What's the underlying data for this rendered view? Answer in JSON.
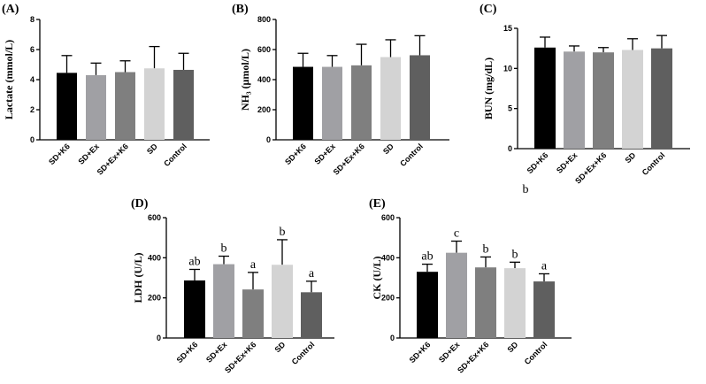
{
  "chart_data": [
    {
      "type": "bar",
      "panel": "(A)",
      "ylabel": "Lactate (mmol/L)",
      "categories": [
        "SD+K6",
        "SD+Ex",
        "SD+Ex+K6",
        "SD",
        "Control"
      ],
      "values": [
        4.45,
        4.3,
        4.5,
        4.75,
        4.65
      ],
      "errors": [
        1.15,
        0.8,
        0.75,
        1.45,
        1.1
      ],
      "letters": [],
      "ylim": [
        0,
        8
      ],
      "yticks": [
        "0",
        "2",
        "4",
        "6",
        "8"
      ],
      "colors": [
        "#000000",
        "#a0a0a4",
        "#7f7f7f",
        "#d3d3d3",
        "#5f5f5f"
      ]
    },
    {
      "type": "bar",
      "panel": "(B)",
      "ylabel": "NH₃ (μmol/L)",
      "categories": [
        "SD+K6",
        "SD+Ex",
        "SD+Ex+K6",
        "SD",
        "Control"
      ],
      "values": [
        485,
        485,
        495,
        550,
        562
      ],
      "errors": [
        90,
        75,
        140,
        115,
        130
      ],
      "letters": [],
      "ylim": [
        0,
        800
      ],
      "yticks": [
        "0",
        "200",
        "400",
        "600",
        "800"
      ],
      "colors": [
        "#000000",
        "#a0a0a4",
        "#7f7f7f",
        "#d3d3d3",
        "#5f5f5f"
      ]
    },
    {
      "type": "bar",
      "panel": "(C)",
      "ylabel": "BUN (mg/dL)",
      "categories": [
        "SD+K6",
        "SD+Ex",
        "SD+Ex+K6",
        "SD",
        "Control"
      ],
      "values": [
        12.6,
        12.1,
        12.0,
        12.3,
        12.5
      ],
      "errors": [
        1.3,
        0.7,
        0.6,
        1.4,
        1.6
      ],
      "letters": [],
      "ylim": [
        0,
        15
      ],
      "yticks": [
        "0",
        "5",
        "10",
        "15"
      ],
      "colors": [
        "#000000",
        "#a0a0a4",
        "#7f7f7f",
        "#d3d3d3",
        "#5f5f5f"
      ],
      "annotation": "b"
    },
    {
      "type": "bar",
      "panel": "(D)",
      "ylabel": "LDH (U/L)",
      "categories": [
        "SD+K6",
        "SD+Ex",
        "SD+Ex+K6",
        "SD",
        "Control"
      ],
      "values": [
        287,
        368,
        242,
        365,
        228
      ],
      "errors": [
        55,
        40,
        85,
        125,
        55
      ],
      "letters": [
        "ab",
        "b",
        "a",
        "b",
        "a"
      ],
      "ylim": [
        0,
        600
      ],
      "yticks": [
        "0",
        "200",
        "400",
        "600"
      ],
      "colors": [
        "#000000",
        "#a0a0a4",
        "#7f7f7f",
        "#d3d3d3",
        "#5f5f5f"
      ]
    },
    {
      "type": "bar",
      "panel": "(E)",
      "ylabel": "CK (U/L)",
      "categories": [
        "SD+K6",
        "SD+Ex",
        "SD+Ex+K6",
        "SD",
        "Control"
      ],
      "values": [
        330,
        425,
        352,
        348,
        282
      ],
      "errors": [
        38,
        58,
        52,
        30,
        38
      ],
      "letters": [
        "ab",
        "c",
        "b",
        "b",
        "a"
      ],
      "ylim": [
        0,
        600
      ],
      "yticks": [
        "0",
        "200",
        "400",
        "600"
      ],
      "colors": [
        "#000000",
        "#a0a0a4",
        "#7f7f7f",
        "#d3d3d3",
        "#5f5f5f"
      ]
    }
  ]
}
